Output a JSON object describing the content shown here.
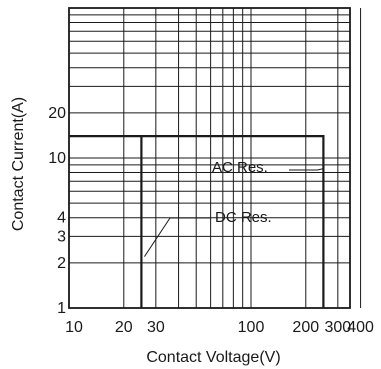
{
  "chart_data": {
    "type": "line",
    "title": "",
    "xlabel": "Contact Voltage(V)",
    "ylabel": "Contact Current(A)",
    "xscale": "log",
    "yscale": "log",
    "xlim": [
      10,
      400
    ],
    "ylim": [
      1,
      100
    ],
    "grid": true,
    "x_tick_labels": [
      {
        "value": 10,
        "label": "10"
      },
      {
        "value": 20,
        "label": "20"
      },
      {
        "value": 30,
        "label": "30"
      },
      {
        "value": 100,
        "label": "100"
      },
      {
        "value": 200,
        "label": "200"
      },
      {
        "value": 300,
        "label": "300"
      },
      {
        "value": 400,
        "label": "400"
      }
    ],
    "y_tick_labels": [
      {
        "value": 1,
        "label": "1"
      },
      {
        "value": 2,
        "label": "2"
      },
      {
        "value": 3,
        "label": "3"
      },
      {
        "value": 4,
        "label": "4"
      },
      {
        "value": 10,
        "label": "10"
      },
      {
        "value": 20,
        "label": "20"
      }
    ],
    "x_grid_values": [
      10,
      20,
      30,
      40,
      50,
      60,
      70,
      80,
      90,
      100,
      200,
      300,
      400
    ],
    "y_grid_values": [
      1,
      2,
      3,
      4,
      5,
      6,
      7,
      8,
      9,
      10,
      20,
      30,
      40,
      50,
      60,
      70,
      80,
      90,
      100
    ],
    "series": [
      {
        "name": "AC Res.",
        "points": [
          {
            "x": 10,
            "y": 14
          },
          {
            "x": 250,
            "y": 14
          },
          {
            "x": 250,
            "y": 1
          }
        ]
      },
      {
        "name": "DC Res.",
        "points": [
          {
            "x": 25,
            "y": 14
          },
          {
            "x": 25,
            "y": 1
          }
        ]
      }
    ],
    "annotations": [
      {
        "text": "AC Res.",
        "target": {
          "x": 250,
          "y": 8.5
        }
      },
      {
        "text": "DC Res.",
        "target": {
          "x": 25,
          "y": 2.2
        }
      }
    ]
  }
}
